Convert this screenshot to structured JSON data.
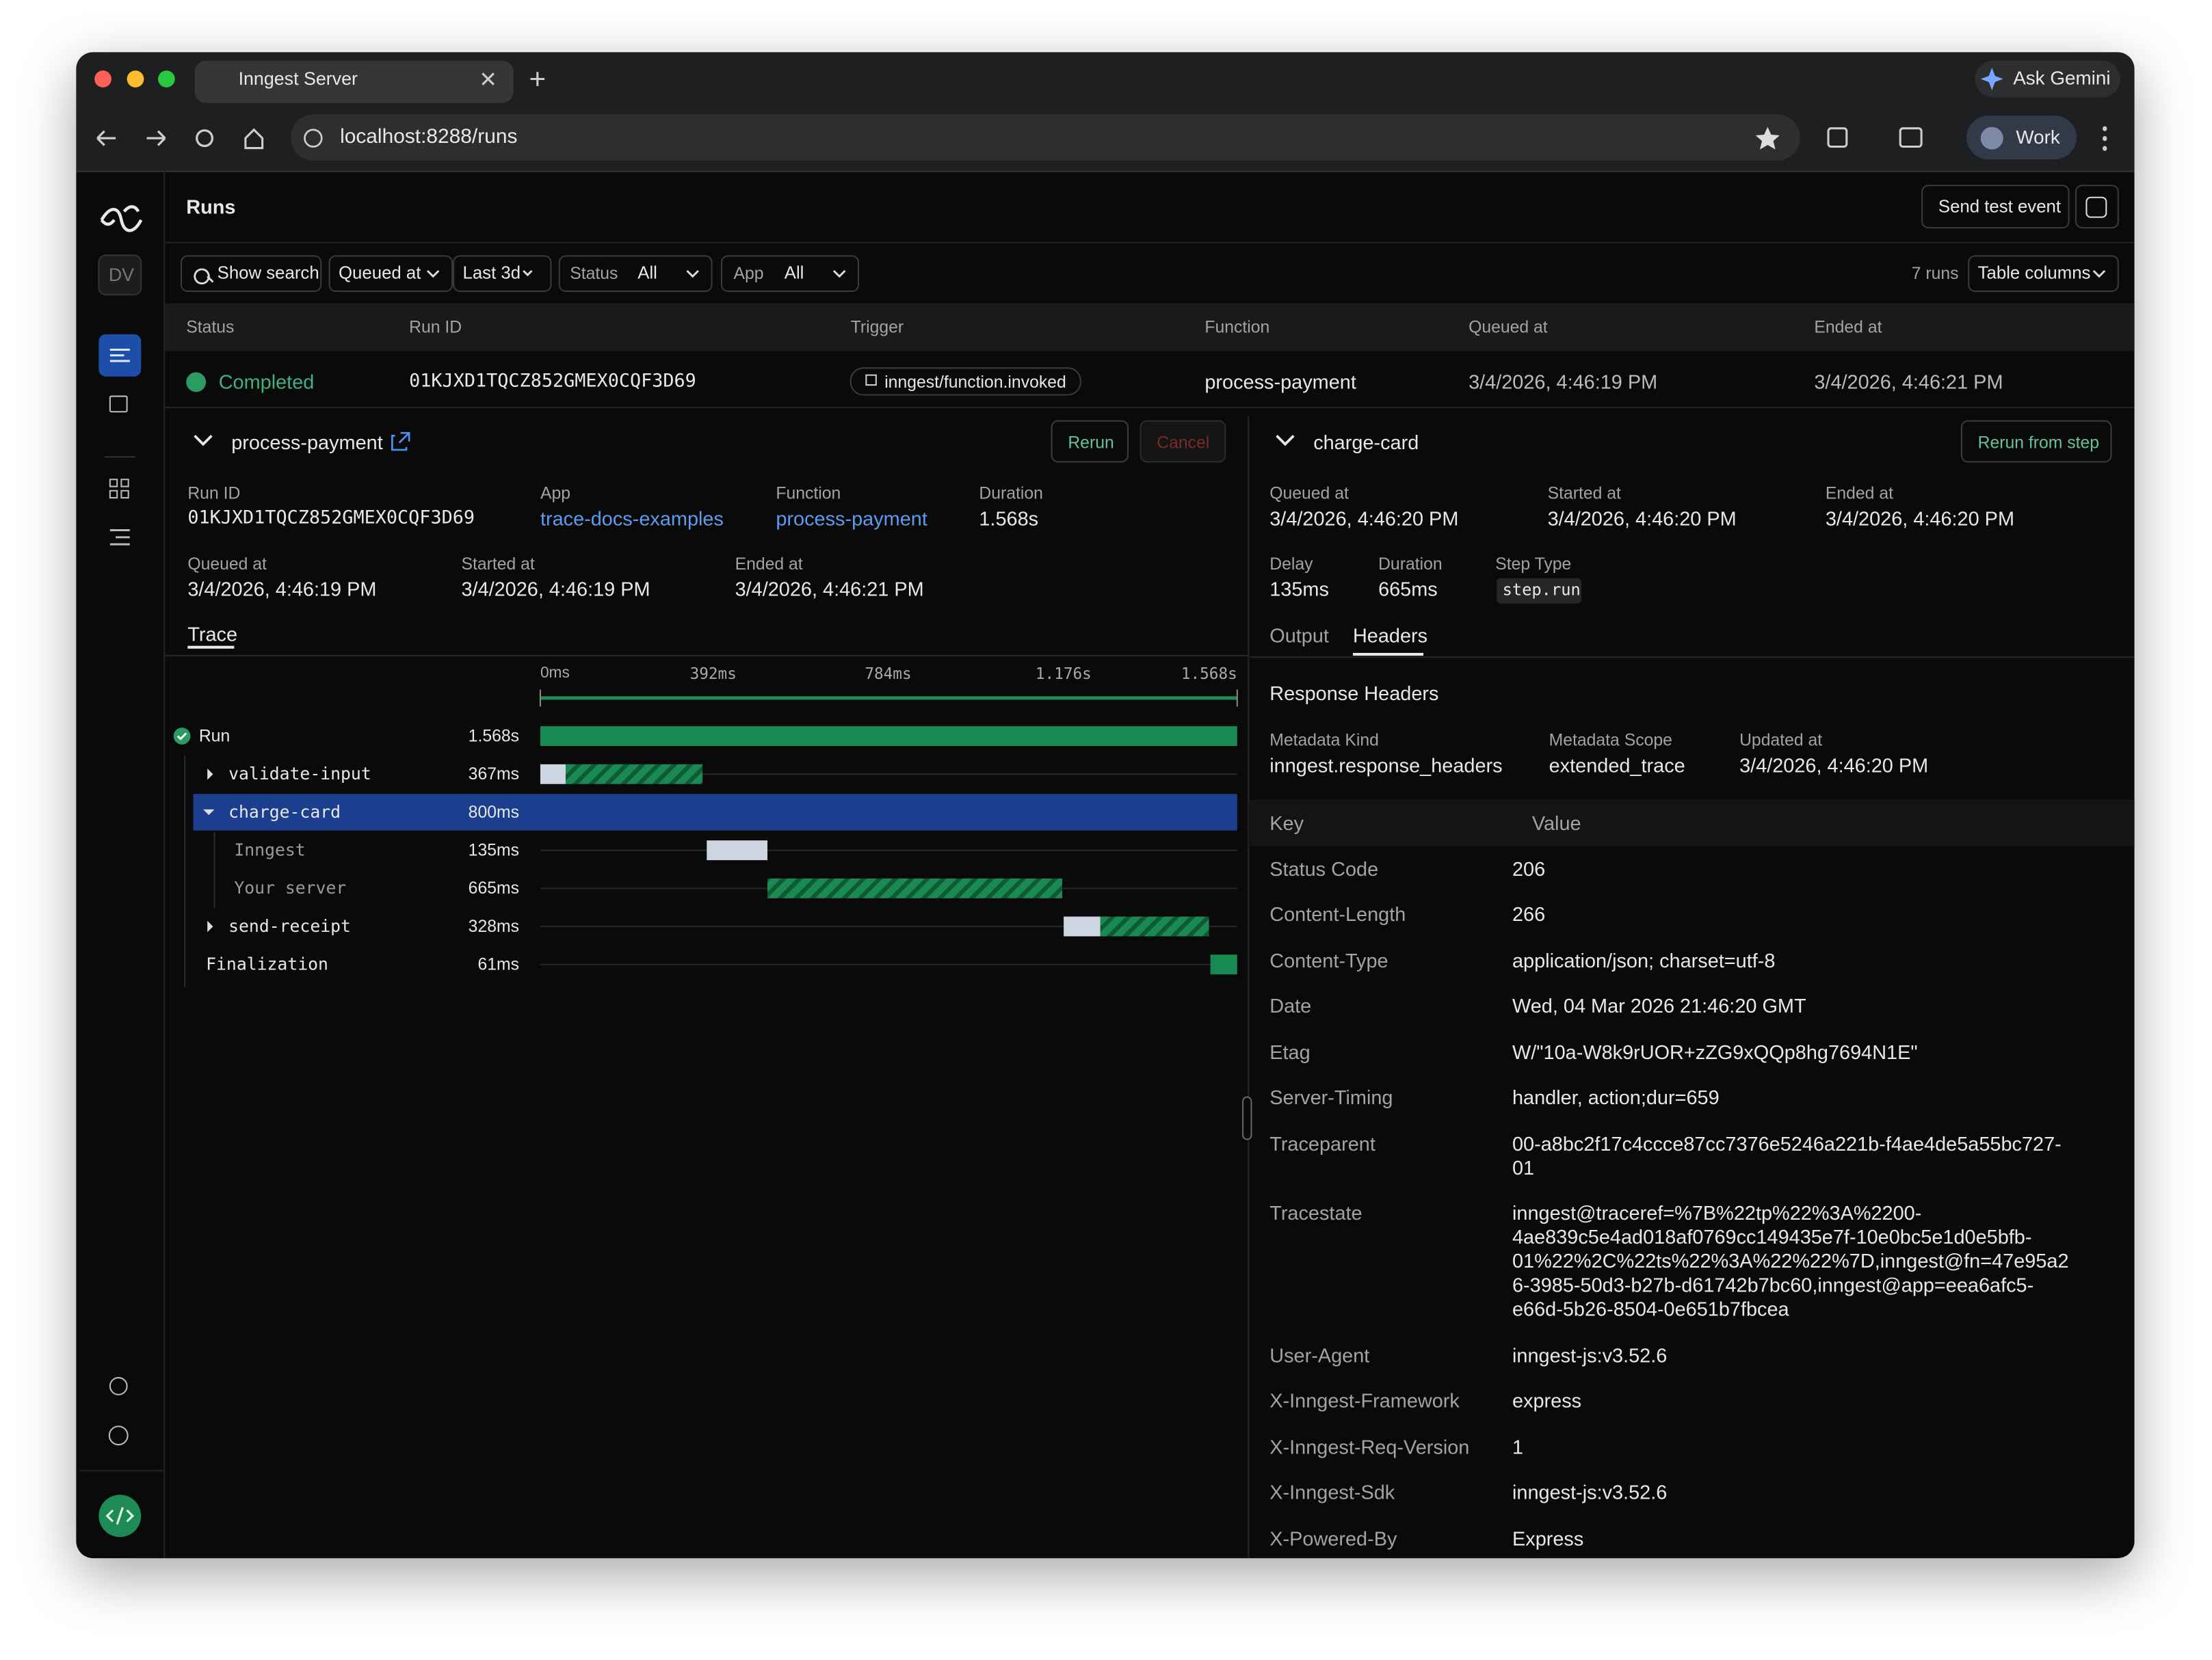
{
  "browser": {
    "tab_title": "Inngest Server",
    "url": "localhost:8288/runs",
    "ask_gemini": "Ask Gemini",
    "profile": "Work"
  },
  "sidebar": {
    "initials": "DV"
  },
  "header": {
    "title": "Runs",
    "send_test_event": "Send test event"
  },
  "filters": {
    "show_search": "Show search",
    "queued_at": "Queued at",
    "range": "Last 3d",
    "status_label": "Status",
    "status_value": "All",
    "app_label": "App",
    "app_value": "All",
    "run_count": "7 runs",
    "table_columns": "Table columns"
  },
  "runs_table": {
    "columns": [
      "Status",
      "Run ID",
      "Trigger",
      "Function",
      "Queued at",
      "Ended at"
    ],
    "rows": [
      [
        "Completed",
        "01KJXD1TQCZ852GMEX0CQF3D69",
        "inngest/function.invoked",
        "process-payment",
        "3/4/2026, 4:46:19 PM",
        "3/4/2026, 4:46:21 PM"
      ]
    ]
  },
  "run_panel": {
    "title": "process-payment",
    "rerun": "Rerun",
    "cancel": "Cancel",
    "fields": [
      {
        "label": "Run ID",
        "value": "01KJXD1TQCZ852GMEX0CQF3D69"
      },
      {
        "label": "App",
        "value": "trace-docs-examples"
      },
      {
        "label": "Function",
        "value": "process-payment"
      },
      {
        "label": "Duration",
        "value": "1.568s"
      },
      {
        "label": "Queued at",
        "value": "3/4/2026, 4:46:19 PM"
      },
      {
        "label": "Started at",
        "value": "3/4/2026, 4:46:19 PM"
      },
      {
        "label": "Ended at",
        "value": "3/4/2026, 4:46:21 PM"
      }
    ],
    "tab": "Trace",
    "timeline_ticks": [
      "0ms",
      "392ms",
      "784ms",
      "1.176s",
      "1.568s"
    ],
    "trace_rows": [
      {
        "name": "Run",
        "duration": "1.568s"
      },
      {
        "name": "validate-input",
        "duration": "367ms"
      },
      {
        "name": "charge-card",
        "duration": "800ms"
      },
      {
        "name": "Inngest",
        "duration": "135ms"
      },
      {
        "name": "Your server",
        "duration": "665ms"
      },
      {
        "name": "send-receipt",
        "duration": "328ms"
      },
      {
        "name": "Finalization",
        "duration": "61ms"
      }
    ]
  },
  "step_panel": {
    "title": "charge-card",
    "rerun_from_step": "Rerun from step",
    "fields": [
      {
        "label": "Queued at",
        "value": "3/4/2026, 4:46:20 PM"
      },
      {
        "label": "Started at",
        "value": "3/4/2026, 4:46:20 PM"
      },
      {
        "label": "Ended at",
        "value": "3/4/2026, 4:46:20 PM"
      },
      {
        "label": "Delay",
        "value": "135ms"
      },
      {
        "label": "Duration",
        "value": "665ms"
      },
      {
        "label": "Step Type",
        "value": "step.run"
      }
    ],
    "tabs": [
      "Output",
      "Headers"
    ],
    "section_title": "Response Headers",
    "metadata": [
      {
        "label": "Metadata Kind",
        "value": "inngest.response_headers"
      },
      {
        "label": "Metadata Scope",
        "value": "extended_trace"
      },
      {
        "label": "Updated at",
        "value": "3/4/2026, 4:46:20 PM"
      }
    ],
    "headers_columns": [
      "Key",
      "Value"
    ],
    "headers": [
      [
        "Status Code",
        "206"
      ],
      [
        "Content-Length",
        "266"
      ],
      [
        "Content-Type",
        "application/json; charset=utf-8"
      ],
      [
        "Date",
        "Wed, 04 Mar 2026 21:46:20 GMT"
      ],
      [
        "Etag",
        "W/\"10a-W8k9rUOR+zZG9xQQp8hg7694N1E\""
      ],
      [
        "Server-Timing",
        "handler, action;dur=659"
      ],
      [
        "Traceparent",
        "00-a8bc2f17c4ccce87cc7376e5246a221b-f4ae4de5a55bc727-01"
      ],
      [
        "Tracestate",
        "inngest@traceref=%7B%22tp%22%3A%2200-4ae839c5e4ad018af0769cc149435e7f-10e0bc5e1d0e5bfb-01%22%2C%22ts%22%3A%22%22%7D,inngest@fn=47e95a26-3985-50d3-b27b-d61742b7bc60,inngest@app=eea6afc5-e66d-5b26-8504-0e651b7fbcea"
      ],
      [
        "User-Agent",
        "inngest-js:v3.52.6"
      ],
      [
        "X-Inngest-Framework",
        "express"
      ],
      [
        "X-Inngest-Req-Version",
        "1"
      ],
      [
        "X-Inngest-Sdk",
        "inngest-js:v3.52.6"
      ],
      [
        "X-Powered-By",
        "Express"
      ]
    ]
  }
}
